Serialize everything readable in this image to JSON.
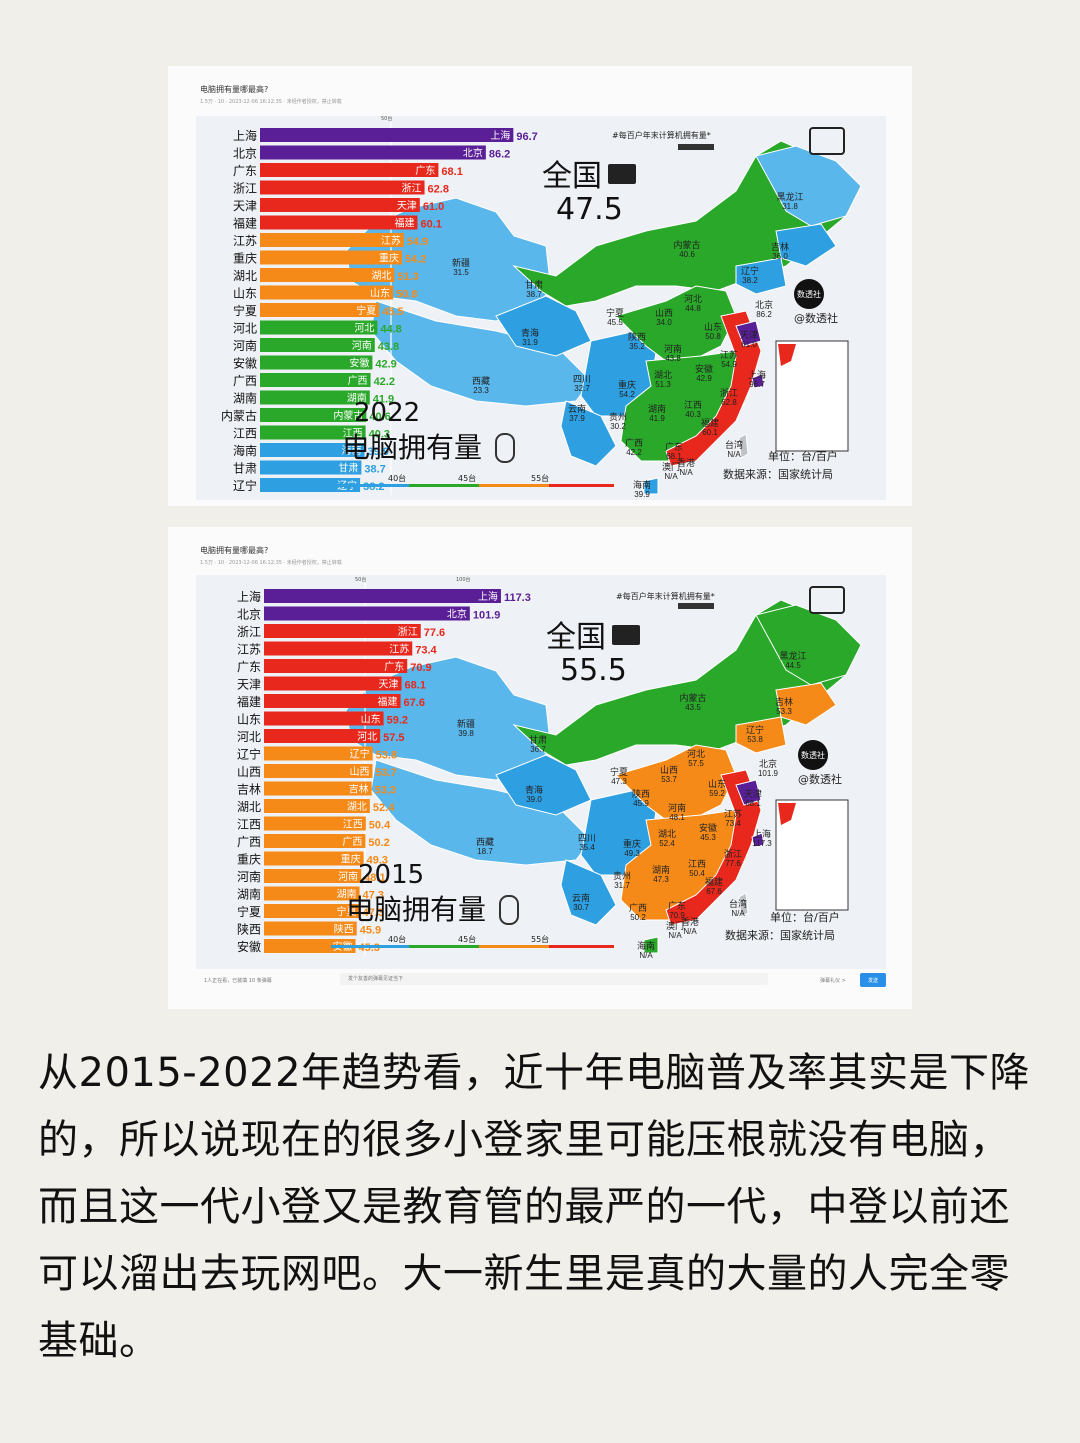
{
  "caption": "从2015-2022年趋势看，近十年电脑普及率其实是下降的，所以说现在的很多小登家里可能压根就没有电脑，而且这一代小登又是教育管的最严的一代，中登以前还可以溜出去玩网吧。大一新生里是真的大量的人完全零基础。",
  "colors": {
    "purple": "#5a1f96",
    "red": "#e8281c",
    "orange": "#f58a18",
    "green": "#2aa82a",
    "blue": "#2e9fe0",
    "lightblue": "#5ab7ec",
    "sea": "#eef1f5"
  },
  "panels": [
    {
      "question": "电脑拥有量哪最高?",
      "meta": "1.5万 · 10 · 2023-12-06 16:12:35 · 未经作者授权，禁止转载",
      "scale_label": "50台",
      "note": "#每百户年末计算机拥有量*",
      "year": "2022",
      "map_title": "电脑拥有量",
      "national_label": "全国",
      "national_value": "47.5",
      "unit": "单位：台/百户",
      "source": "数据来源：国家统计局",
      "brand": "@数透社",
      "brand_logo": "数透社",
      "legend_labels": [
        "40台",
        "45台",
        "55台"
      ],
      "map_labels": [
        {
          "name": "新疆",
          "value": "31.5"
        },
        {
          "name": "西藏",
          "value": "23.3"
        },
        {
          "name": "青海",
          "value": "31.9"
        },
        {
          "name": "甘肃",
          "value": "38.7"
        },
        {
          "name": "内蒙古",
          "value": "40.6"
        },
        {
          "name": "黑龙江",
          "value": "31.8"
        },
        {
          "name": "吉林",
          "value": "36.0"
        },
        {
          "name": "辽宁",
          "value": "38.2"
        },
        {
          "name": "北京",
          "value": "86.2"
        },
        {
          "name": "天津",
          "value": "61.0"
        },
        {
          "name": "河北",
          "value": "44.8"
        },
        {
          "name": "山西",
          "value": "34.0"
        },
        {
          "name": "陕西",
          "value": "35.2"
        },
        {
          "name": "宁夏",
          "value": "45.5"
        },
        {
          "name": "四川",
          "value": "32.7"
        },
        {
          "name": "云南",
          "value": "37.9"
        },
        {
          "name": "贵州",
          "value": "30.2"
        },
        {
          "name": "重庆",
          "value": "54.2"
        },
        {
          "name": "湖北",
          "value": "51.3"
        },
        {
          "name": "湖南",
          "value": "41.9"
        },
        {
          "name": "河南",
          "value": "43.8"
        },
        {
          "name": "山东",
          "value": "50.8"
        },
        {
          "name": "江苏",
          "value": "54.9"
        },
        {
          "name": "安徽",
          "value": "42.9"
        },
        {
          "name": "上海",
          "value": "96.7"
        },
        {
          "name": "浙江",
          "value": "62.8"
        },
        {
          "name": "江西",
          "value": "40.3"
        },
        {
          "name": "福建",
          "value": "60.1"
        },
        {
          "name": "广东",
          "value": "68.1"
        },
        {
          "name": "广西",
          "value": "42.2"
        },
        {
          "name": "海南",
          "value": "39.9"
        },
        {
          "name": "澳门",
          "value": "N/A"
        },
        {
          "name": "香港",
          "value": "N/A"
        },
        {
          "name": "台湾",
          "value": "N/A"
        }
      ]
    },
    {
      "question": "电脑拥有量哪最高?",
      "meta": "1.5万 · 10 · 2023-12-06 16:12:35 · 未经作者授权，禁止转载",
      "scale_label": "50台",
      "scale_label2": "100台",
      "note": "#每百户年末计算机拥有量*",
      "year": "2015",
      "map_title": "电脑拥有量",
      "national_label": "全国",
      "national_value": "55.5",
      "unit": "单位：台/百户",
      "source": "数据来源：国家统计局",
      "brand": "@数透社",
      "brand_logo": "数透社",
      "legend_labels": [
        "40台",
        "45台",
        "55台"
      ],
      "comment_status": "1人正在看，已装填 10 条弹幕",
      "comment_placeholder": "发个友善的弹幕见证当下",
      "comment_etiquette": "弹幕礼仪 >",
      "comment_send": "发送",
      "map_labels": [
        {
          "name": "新疆",
          "value": "39.8"
        },
        {
          "name": "西藏",
          "value": "18.7"
        },
        {
          "name": "青海",
          "value": "39.0"
        },
        {
          "name": "甘肃",
          "value": "36.7"
        },
        {
          "name": "内蒙古",
          "value": "43.5"
        },
        {
          "name": "黑龙江",
          "value": "44.5"
        },
        {
          "name": "吉林",
          "value": "53.3"
        },
        {
          "name": "辽宁",
          "value": "53.8"
        },
        {
          "name": "北京",
          "value": "101.9"
        },
        {
          "name": "天津",
          "value": "68.1"
        },
        {
          "name": "河北",
          "value": "57.5"
        },
        {
          "name": "山西",
          "value": "53.7"
        },
        {
          "name": "陕西",
          "value": "45.9"
        },
        {
          "name": "宁夏",
          "value": "47.3"
        },
        {
          "name": "四川",
          "value": "35.4"
        },
        {
          "name": "云南",
          "value": "30.7"
        },
        {
          "name": "贵州",
          "value": "31.7"
        },
        {
          "name": "重庆",
          "value": "49.3"
        },
        {
          "name": "湖北",
          "value": "52.4"
        },
        {
          "name": "湖南",
          "value": "47.3"
        },
        {
          "name": "河南",
          "value": "48.1"
        },
        {
          "name": "山东",
          "value": "59.2"
        },
        {
          "name": "江苏",
          "value": "73.4"
        },
        {
          "name": "安徽",
          "value": "45.3"
        },
        {
          "name": "上海",
          "value": "117.3"
        },
        {
          "name": "浙江",
          "value": "77.6"
        },
        {
          "name": "江西",
          "value": "50.4"
        },
        {
          "name": "福建",
          "value": "67.6"
        },
        {
          "name": "广东",
          "value": "70.9"
        },
        {
          "name": "广西",
          "value": "50.2"
        },
        {
          "name": "海南",
          "value": "N/A"
        },
        {
          "name": "澳门",
          "value": "N/A"
        },
        {
          "name": "香港",
          "value": "N/A"
        },
        {
          "name": "台湾",
          "value": "N/A"
        }
      ]
    }
  ],
  "chart_data": [
    {
      "type": "bar",
      "orientation": "horizontal",
      "title": "2022 电脑拥有量",
      "unit": "台/百户",
      "xlim": [
        0,
        100
      ],
      "categories": [
        "上海",
        "北京",
        "广东",
        "浙江",
        "天津",
        "福建",
        "江苏",
        "重庆",
        "湖北",
        "山东",
        "宁夏",
        "河北",
        "河南",
        "安徽",
        "广西",
        "湖南",
        "内蒙古",
        "江西",
        "海南",
        "甘肃",
        "辽宁"
      ],
      "values": [
        96.7,
        86.2,
        68.1,
        62.8,
        61.0,
        60.1,
        54.9,
        54.2,
        51.3,
        50.8,
        45.5,
        44.8,
        43.8,
        42.9,
        42.2,
        41.9,
        40.6,
        40.3,
        39.9,
        38.7,
        38.2
      ],
      "national": 47.5
    },
    {
      "type": "bar",
      "orientation": "horizontal",
      "title": "2015 电脑拥有量",
      "unit": "台/百户",
      "xlim": [
        0,
        120
      ],
      "categories": [
        "上海",
        "北京",
        "浙江",
        "江苏",
        "广东",
        "天津",
        "福建",
        "山东",
        "河北",
        "辽宁",
        "山西",
        "吉林",
        "湖北",
        "江西",
        "广西",
        "重庆",
        "河南",
        "湖南",
        "宁夏",
        "陕西",
        "安徽"
      ],
      "values": [
        117.3,
        101.9,
        77.6,
        73.4,
        70.9,
        68.1,
        67.6,
        59.2,
        57.5,
        53.8,
        53.7,
        53.3,
        52.4,
        50.4,
        50.2,
        49.3,
        48.1,
        47.3,
        47.3,
        45.9,
        45.3
      ],
      "national": 55.5
    }
  ]
}
